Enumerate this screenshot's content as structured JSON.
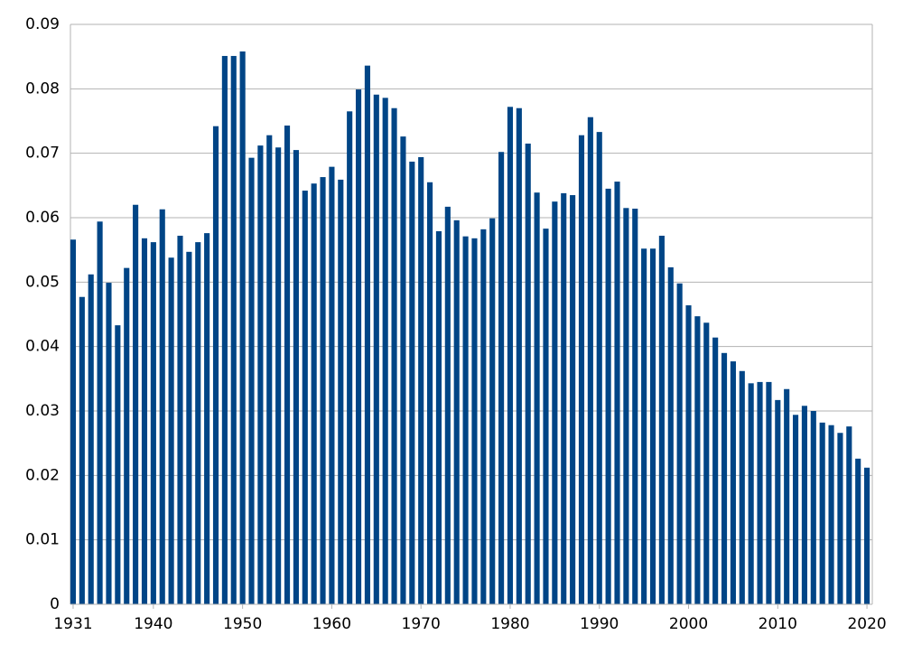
{
  "chart_data": {
    "type": "bar",
    "x": [
      1931,
      1932,
      1933,
      1934,
      1935,
      1936,
      1937,
      1938,
      1939,
      1940,
      1941,
      1942,
      1943,
      1944,
      1945,
      1946,
      1947,
      1948,
      1949,
      1950,
      1951,
      1952,
      1953,
      1954,
      1955,
      1956,
      1957,
      1958,
      1959,
      1960,
      1961,
      1962,
      1963,
      1964,
      1965,
      1966,
      1967,
      1968,
      1969,
      1970,
      1971,
      1972,
      1973,
      1974,
      1975,
      1976,
      1977,
      1978,
      1979,
      1980,
      1981,
      1982,
      1983,
      1984,
      1985,
      1986,
      1987,
      1988,
      1989,
      1990,
      1991,
      1992,
      1993,
      1994,
      1995,
      1996,
      1997,
      1998,
      1999,
      2000,
      2001,
      2002,
      2003,
      2004,
      2005,
      2006,
      2007,
      2008,
      2009,
      2010,
      2011,
      2012,
      2013,
      2014,
      2015,
      2016,
      2017,
      2018,
      2019,
      2020
    ],
    "values": [
      0.0566,
      0.0477,
      0.0512,
      0.0594,
      0.0499,
      0.0433,
      0.0522,
      0.062,
      0.0568,
      0.0562,
      0.0613,
      0.0538,
      0.0572,
      0.0547,
      0.0562,
      0.0576,
      0.0742,
      0.0851,
      0.0851,
      0.0858,
      0.0693,
      0.0712,
      0.0728,
      0.0709,
      0.0743,
      0.0705,
      0.0642,
      0.0653,
      0.0663,
      0.0679,
      0.0659,
      0.0765,
      0.0799,
      0.0836,
      0.0791,
      0.0786,
      0.077,
      0.0726,
      0.0687,
      0.0694,
      0.0655,
      0.0579,
      0.0617,
      0.0596,
      0.0571,
      0.0568,
      0.0582,
      0.0599,
      0.0702,
      0.0772,
      0.077,
      0.0715,
      0.0639,
      0.0583,
      0.0625,
      0.0638,
      0.0635,
      0.0728,
      0.0756,
      0.0733,
      0.0645,
      0.0656,
      0.0615,
      0.0614,
      0.0552,
      0.0552,
      0.0572,
      0.0523,
      0.0498,
      0.0464,
      0.0447,
      0.0437,
      0.0414,
      0.039,
      0.0377,
      0.0362,
      0.0343,
      0.0345,
      0.0345,
      0.0317,
      0.0334,
      0.0294,
      0.0308,
      0.03,
      0.0282,
      0.0278,
      0.0266,
      0.0276,
      0.0226,
      0.0212
    ],
    "color": "#004586",
    "xlim": [
      1930.7,
      2020.6
    ],
    "xticks": [
      1931,
      1940,
      1950,
      1960,
      1970,
      1980,
      1990,
      2000,
      2010,
      2020
    ],
    "ylim": [
      0,
      0.09
    ],
    "yticks": [
      0,
      0.01,
      0.02,
      0.03,
      0.04,
      0.05,
      0.06,
      0.07,
      0.08,
      0.09
    ],
    "grid": true
  }
}
